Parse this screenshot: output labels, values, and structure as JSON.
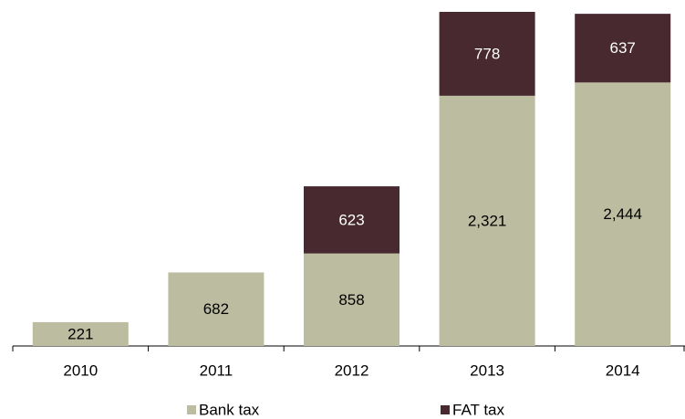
{
  "chart_data": {
    "type": "bar",
    "stacked": true,
    "categories": [
      "2010",
      "2011",
      "2012",
      "2013",
      "2014"
    ],
    "series": [
      {
        "name": "Bank tax",
        "color": "#bcbda0",
        "values": [
          221,
          682,
          858,
          2321,
          2444
        ],
        "value_labels": [
          "221",
          "682",
          "858",
          "2,321",
          "2,444"
        ]
      },
      {
        "name": "FAT tax",
        "color": "#47292f",
        "values": [
          null,
          null,
          623,
          778,
          637
        ]
      }
    ],
    "legend": "bottom"
  }
}
